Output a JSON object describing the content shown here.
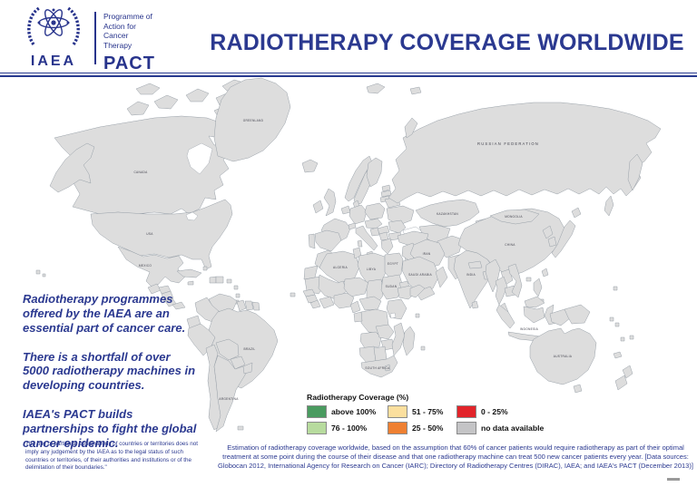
{
  "header": {
    "title": "RADIOTHERAPY COVERAGE WORLDWIDE",
    "logo": {
      "org": "IAEA",
      "programme_line1": "Programme of",
      "programme_line2": "Action for",
      "programme_line3": "Cancer",
      "programme_line4": "Therapy",
      "acronym": "PACT"
    }
  },
  "intro": {
    "paragraphs": [
      "Radiotherapy programmes offered by the IAEA are an essential part of cancer care.",
      "There is a shortfall of over 5000 radiotherapy machines in developing countries.",
      "IAEA's PACT builds partnerships to fight the global cancer epidemic."
    ],
    "disclaimer": "The use of particular designations of countries or territories does not imply any judgement by the IAEA as to the legal status of such countries or territories, of their authorities and institutions or of the delimitation of their boundaries.\""
  },
  "legend": {
    "title": "Radiotherapy Coverage (%)",
    "items": [
      {
        "key": "above100",
        "label": "above 100%",
        "color": "#4A9B60"
      },
      {
        "key": "51-75",
        "label": "51 - 75%",
        "color": "#FBDF9E"
      },
      {
        "key": "0-25",
        "label": "0 - 25%",
        "color": "#E2242A"
      },
      {
        "key": "76-100",
        "label": "76 - 100%",
        "color": "#B7DB9E"
      },
      {
        "key": "25-50",
        "label": "25 - 50%",
        "color": "#EF8032"
      },
      {
        "key": "nodata",
        "label": "no data available",
        "color": "#C4C4C6"
      }
    ]
  },
  "caption": "Estimation of radiotherapy coverage worldwide, based on the assumption that 60% of cancer patients would require radiotherapy as part of their optimal treatment at some point during the course of their disease and that one radiotherapy machine can treat 500 new cancer patients every year. [Data sources: Globocan 2012, International Agency for Research on Cancer (IARC); Directory of Radiotherapy Centres (DIRAC), IAEA; and IAEA's PACT (December 2013)]",
  "map": {
    "regions": [
      {
        "id": "canada",
        "category": "above100"
      },
      {
        "id": "alaska",
        "category": "above100"
      },
      {
        "id": "usa",
        "category": "above100"
      },
      {
        "id": "hawaii",
        "category": "above100"
      },
      {
        "id": "greenland",
        "category": "nodata"
      },
      {
        "id": "iceland",
        "category": "above100"
      },
      {
        "id": "mexico",
        "category": "51-75"
      },
      {
        "id": "guatemala",
        "category": "51-75"
      },
      {
        "id": "honduras",
        "category": "51-75"
      },
      {
        "id": "nicaragua",
        "category": "25-50"
      },
      {
        "id": "costa-rica",
        "category": "above100"
      },
      {
        "id": "panama",
        "category": "76-100"
      },
      {
        "id": "cuba",
        "category": "25-50"
      },
      {
        "id": "jamaica",
        "category": "0-25"
      },
      {
        "id": "haiti",
        "category": "0-25"
      },
      {
        "id": "dominican-republic",
        "category": "25-50"
      },
      {
        "id": "puerto-rico",
        "category": "25-50"
      },
      {
        "id": "bahamas",
        "category": "51-75"
      },
      {
        "id": "lesser-antilles",
        "category": "0-25"
      },
      {
        "id": "trinidad",
        "category": "above100"
      },
      {
        "id": "cape-verde",
        "category": "0-25"
      },
      {
        "id": "venezuela",
        "category": "above100"
      },
      {
        "id": "colombia",
        "category": "76-100"
      },
      {
        "id": "guyana",
        "category": "above100"
      },
      {
        "id": "suriname",
        "category": "nodata"
      },
      {
        "id": "french-guiana",
        "category": "25-50"
      },
      {
        "id": "ecuador",
        "category": "51-75"
      },
      {
        "id": "peru",
        "category": "51-75"
      },
      {
        "id": "brazil",
        "category": "51-75"
      },
      {
        "id": "bolivia",
        "category": "25-50"
      },
      {
        "id": "paraguay",
        "category": "51-75"
      },
      {
        "id": "chile",
        "category": "above100"
      },
      {
        "id": "argentina",
        "category": "76-100"
      },
      {
        "id": "uruguay",
        "category": "above100"
      },
      {
        "id": "falklands",
        "category": "nodata"
      },
      {
        "id": "norway",
        "category": "above100"
      },
      {
        "id": "sweden",
        "category": "above100"
      },
      {
        "id": "finland",
        "category": "above100"
      },
      {
        "id": "denmark",
        "category": "76-100"
      },
      {
        "id": "svalbard",
        "category": "above100"
      },
      {
        "id": "uk",
        "category": "76-100"
      },
      {
        "id": "ireland",
        "category": "76-100"
      },
      {
        "id": "benelux",
        "category": "76-100"
      },
      {
        "id": "germany",
        "category": "76-100"
      },
      {
        "id": "poland",
        "category": "51-75"
      },
      {
        "id": "estonia",
        "category": "51-75"
      },
      {
        "id": "latvia",
        "category": "25-50"
      },
      {
        "id": "lithuania",
        "category": "51-75"
      },
      {
        "id": "belarus",
        "category": "51-75"
      },
      {
        "id": "ukraine",
        "category": "51-75"
      },
      {
        "id": "france",
        "category": "above100"
      },
      {
        "id": "switzerland",
        "category": "76-100"
      },
      {
        "id": "spain",
        "category": "76-100"
      },
      {
        "id": "portugal",
        "category": "51-75"
      },
      {
        "id": "italy",
        "category": "above100"
      },
      {
        "id": "czech-austria",
        "category": "51-75"
      },
      {
        "id": "hungary",
        "category": "25-50"
      },
      {
        "id": "romania",
        "category": "25-50"
      },
      {
        "id": "serbia",
        "category": "above100"
      },
      {
        "id": "bulgaria",
        "category": "25-50"
      },
      {
        "id": "bosnia",
        "category": "25-50"
      },
      {
        "id": "greece",
        "category": "51-75"
      },
      {
        "id": "russia",
        "category": "51-75"
      },
      {
        "id": "kazakhstan",
        "category": "76-100"
      },
      {
        "id": "uzbek-turkmen",
        "category": "nodata"
      },
      {
        "id": "kyrgyzstan",
        "category": "25-50"
      },
      {
        "id": "tajikistan",
        "category": "0-25"
      },
      {
        "id": "afghanistan",
        "category": "0-25"
      },
      {
        "id": "pakistan",
        "category": "25-50"
      },
      {
        "id": "iran",
        "category": "51-75"
      },
      {
        "id": "iraq",
        "category": "51-75"
      },
      {
        "id": "turkey",
        "category": "25-50"
      },
      {
        "id": "syria",
        "category": "25-50"
      },
      {
        "id": "israel-jordan",
        "category": "76-100"
      },
      {
        "id": "saudi-arabia",
        "category": "above100"
      },
      {
        "id": "yemen",
        "category": "0-25"
      },
      {
        "id": "oman",
        "category": "above100"
      },
      {
        "id": "india",
        "category": "25-50"
      },
      {
        "id": "nepal",
        "category": "0-25"
      },
      {
        "id": "bangladesh",
        "category": "0-25"
      },
      {
        "id": "sri-lanka",
        "category": "25-50"
      },
      {
        "id": "china",
        "category": "25-50"
      },
      {
        "id": "mongolia",
        "category": "25-50"
      },
      {
        "id": "north-korea",
        "category": "0-25"
      },
      {
        "id": "south-korea",
        "category": "above100"
      },
      {
        "id": "japan",
        "category": "above100"
      },
      {
        "id": "taiwan",
        "category": "25-50"
      },
      {
        "id": "hainan",
        "category": "25-50"
      },
      {
        "id": "myanmar",
        "category": "0-25"
      },
      {
        "id": "thailand",
        "category": "25-50"
      },
      {
        "id": "laos",
        "category": "25-50"
      },
      {
        "id": "cambodia",
        "category": "0-25"
      },
      {
        "id": "vietnam",
        "category": "25-50"
      },
      {
        "id": "philippines",
        "category": "25-50"
      },
      {
        "id": "malaysia",
        "category": "76-100"
      },
      {
        "id": "indonesia",
        "category": "0-25"
      },
      {
        "id": "papua-new-guinea",
        "category": "0-25"
      },
      {
        "id": "solomon-islands",
        "category": "0-25"
      },
      {
        "id": "vanuatu",
        "category": "0-25"
      },
      {
        "id": "fiji",
        "category": "0-25"
      },
      {
        "id": "new-caledonia",
        "category": "nodata"
      },
      {
        "id": "marshall-islands",
        "category": "0-25"
      },
      {
        "id": "australia",
        "category": "above100"
      },
      {
        "id": "tasmania",
        "category": "above100"
      },
      {
        "id": "new-zealand",
        "category": "above100"
      },
      {
        "id": "morocco",
        "category": "25-50"
      },
      {
        "id": "western-sahara",
        "category": "nodata"
      },
      {
        "id": "algeria",
        "category": "0-25"
      },
      {
        "id": "tunisia",
        "category": "25-50"
      },
      {
        "id": "libya",
        "category": "51-75"
      },
      {
        "id": "egypt",
        "category": "25-50"
      },
      {
        "id": "mauritania",
        "category": "0-25"
      },
      {
        "id": "mali",
        "category": "0-25"
      },
      {
        "id": "niger",
        "category": "0-25"
      },
      {
        "id": "chad",
        "category": "0-25"
      },
      {
        "id": "sudan",
        "category": "25-50"
      },
      {
        "id": "eritrea",
        "category": "25-50"
      },
      {
        "id": "senegal",
        "category": "0-25"
      },
      {
        "id": "guinea-group",
        "category": "nodata"
      },
      {
        "id": "sierra-liberia",
        "category": "nodata"
      },
      {
        "id": "ivory-ghana",
        "category": "0-25"
      },
      {
        "id": "nigeria",
        "category": "0-25"
      },
      {
        "id": "cameroon",
        "category": "0-25"
      },
      {
        "id": "central-african-republic",
        "category": "0-25"
      },
      {
        "id": "ethiopia",
        "category": "0-25"
      },
      {
        "id": "somalia",
        "category": "0-25"
      },
      {
        "id": "kenya-tanzania",
        "category": "0-25"
      },
      {
        "id": "drc",
        "category": "0-25"
      },
      {
        "id": "gabon",
        "category": "76-100"
      },
      {
        "id": "angola",
        "category": "0-25"
      },
      {
        "id": "zambia",
        "category": "0-25"
      },
      {
        "id": "zimbabwe",
        "category": "0-25"
      },
      {
        "id": "mozambique",
        "category": "0-25"
      },
      {
        "id": "namibia",
        "category": "51-75"
      },
      {
        "id": "botswana",
        "category": "51-75"
      },
      {
        "id": "south-africa",
        "category": "76-100"
      },
      {
        "id": "lesotho",
        "category": "0-25"
      },
      {
        "id": "madagascar",
        "category": "0-25"
      },
      {
        "id": "mauritius",
        "category": "76-100"
      },
      {
        "id": "seychelles",
        "category": "0-25"
      }
    ],
    "labels": [
      {
        "id": "canada",
        "text": "CANADA"
      },
      {
        "id": "usa",
        "text": "USA"
      },
      {
        "id": "mexico",
        "text": "MEXICO"
      },
      {
        "id": "greenland",
        "text": "GREENLAND"
      },
      {
        "id": "brazil",
        "text": "BRAZIL"
      },
      {
        "id": "argentina",
        "text": "ARGENTINA"
      },
      {
        "id": "russia",
        "text": "RUSSIAN FEDERATION"
      },
      {
        "id": "kazakhstan",
        "text": "KAZAKHSTAN"
      },
      {
        "id": "china",
        "text": "CHINA"
      },
      {
        "id": "mongolia",
        "text": "MONGOLIA"
      },
      {
        "id": "india",
        "text": "INDIA"
      },
      {
        "id": "australia",
        "text": "AUSTRALIA"
      },
      {
        "id": "algeria",
        "text": "ALGERIA"
      },
      {
        "id": "libya",
        "text": "LIBYA"
      },
      {
        "id": "egypt",
        "text": "EGYPT"
      },
      {
        "id": "sudan",
        "text": "SUDAN"
      },
      {
        "id": "saudi-arabia",
        "text": "SAUDI ARABIA"
      },
      {
        "id": "iran",
        "text": "IRAN"
      },
      {
        "id": "south-africa",
        "text": "SOUTH AFRICA"
      },
      {
        "id": "indonesia",
        "text": "INDONESIA"
      }
    ]
  }
}
